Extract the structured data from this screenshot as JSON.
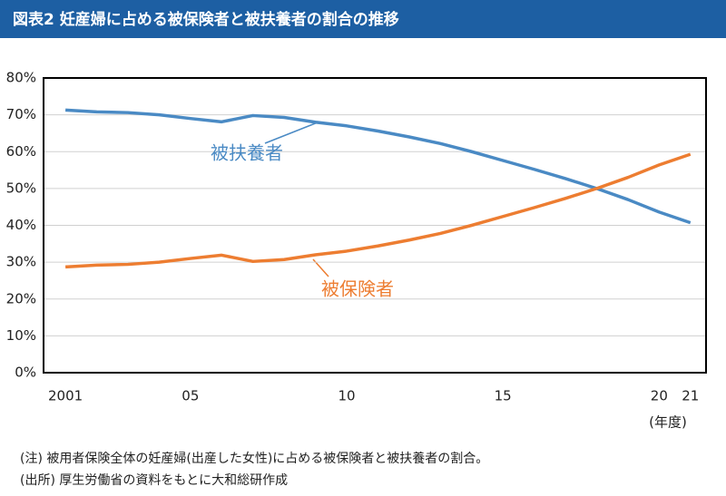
{
  "chart_data": {
    "type": "line",
    "title": "図表2 妊産婦に占める被保険者と被扶養者の割合の推移",
    "x_label": "(年度)",
    "notes": [
      "(注) 被用者保険全体の妊産婦(出産した女性)に占める被保険者と被扶養者の割合。",
      "(出所) 厚生労働省の資料をもとに大和総研作成"
    ],
    "x": [
      2001,
      2002,
      2003,
      2004,
      2005,
      2006,
      2007,
      2008,
      2009,
      2010,
      2011,
      2012,
      2013,
      2014,
      2015,
      2016,
      2017,
      2018,
      2019,
      2020,
      2021
    ],
    "series": [
      {
        "name": "被扶養者",
        "color": "#4a8ac4",
        "values": [
          71.3,
          70.8,
          70.6,
          70.0,
          69.0,
          68.1,
          69.8,
          69.3,
          68.0,
          67.0,
          65.6,
          64.0,
          62.2,
          60.0,
          57.6,
          55.2,
          52.7,
          50.0,
          47.0,
          43.6,
          40.7
        ]
      },
      {
        "name": "被保険者",
        "color": "#ed7d31",
        "values": [
          28.7,
          29.2,
          29.4,
          30.0,
          31.0,
          31.9,
          30.2,
          30.7,
          32.0,
          33.0,
          34.4,
          36.0,
          37.8,
          40.0,
          42.4,
          44.8,
          47.3,
          50.0,
          53.0,
          56.4,
          59.3
        ]
      }
    ],
    "xlim": [
      2000.3,
      2021.5
    ],
    "xticks": [
      2001,
      {
        "value": 2005,
        "label": "05"
      },
      {
        "value": 2010,
        "label": "10"
      },
      {
        "value": 2015,
        "label": "15"
      },
      {
        "value": 2020,
        "label": "20"
      },
      {
        "value": 2021,
        "label": "21"
      }
    ],
    "ylim": [
      0,
      80
    ],
    "yticks": [
      {
        "value": 0,
        "label": "0%"
      },
      {
        "value": 10,
        "label": "10%"
      },
      {
        "value": 20,
        "label": "20%"
      },
      {
        "value": 30,
        "label": "30%"
      },
      {
        "value": 40,
        "label": "40%"
      },
      {
        "value": 50,
        "label": "50%"
      },
      {
        "value": 60,
        "label": "60%"
      },
      {
        "value": 70,
        "label": "70%"
      },
      {
        "value": 80,
        "label": "80%"
      }
    ],
    "grid": true
  }
}
